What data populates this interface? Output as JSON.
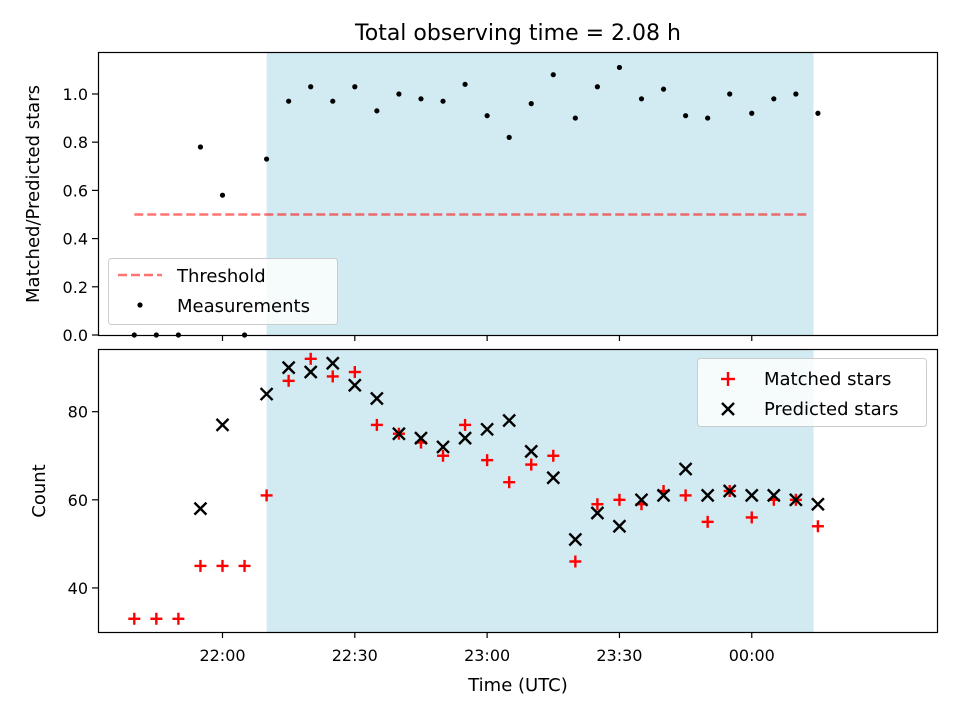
{
  "title": "Total observing time = 2.08 h",
  "colors": {
    "shade": "#add8e6",
    "threshold": "#ff0000",
    "measurement": "#000000",
    "matched": "#ff0000",
    "predicted": "#000000"
  },
  "chart_data": [
    {
      "type": "scatter",
      "ylabel": "Matched/Predicted stars",
      "xlim": [
        "21:32",
        "00:42"
      ],
      "ylim": [
        0,
        1.17
      ],
      "yticks": [
        0.0,
        0.2,
        0.4,
        0.6,
        0.8,
        1.0
      ],
      "ytick_labels": [
        "0.0",
        "0.2",
        "0.4",
        "0.6",
        "0.8",
        "1.0"
      ],
      "shaded_span": [
        "22:10",
        "00:14"
      ],
      "legend": {
        "position": "lower-left",
        "entries": [
          "Threshold",
          "Measurements"
        ]
      },
      "threshold": {
        "name": "Threshold",
        "y": 0.5,
        "x": [
          "21:40",
          "00:13"
        ]
      },
      "series": [
        {
          "name": "Measurements",
          "x": [
            "21:40",
            "21:45",
            "21:50",
            "21:55",
            "22:00",
            "22:05",
            "22:10",
            "22:15",
            "22:20",
            "22:25",
            "22:30",
            "22:35",
            "22:40",
            "22:45",
            "22:50",
            "22:55",
            "23:00",
            "23:05",
            "23:10",
            "23:15",
            "23:20",
            "23:25",
            "23:30",
            "23:35",
            "23:40",
            "23:45",
            "23:50",
            "23:55",
            "00:00",
            "00:05",
            "00:10",
            "00:15"
          ],
          "y": [
            0.0,
            0.0,
            0.0,
            0.78,
            0.58,
            0.0,
            0.73,
            0.97,
            1.03,
            0.97,
            1.03,
            0.93,
            1.0,
            0.98,
            0.97,
            1.04,
            0.91,
            0.82,
            0.96,
            1.08,
            0.9,
            1.03,
            1.11,
            0.98,
            1.02,
            0.91,
            0.9,
            1.0,
            0.92,
            0.98,
            1.0,
            0.92
          ]
        }
      ]
    },
    {
      "type": "scatter",
      "xlabel": "Time (UTC)",
      "ylabel": "Count",
      "xlim": [
        "21:32",
        "00:42"
      ],
      "ylim": [
        30,
        94
      ],
      "xticks": [
        "22:00",
        "22:30",
        "23:00",
        "23:30",
        "00:00"
      ],
      "yticks": [
        40,
        60,
        80
      ],
      "ytick_labels": [
        "40",
        "60",
        "80"
      ],
      "shaded_span": [
        "22:10",
        "00:14"
      ],
      "legend": {
        "position": "upper-right",
        "entries": [
          "Matched stars",
          "Predicted stars"
        ]
      },
      "series": [
        {
          "name": "Matched stars",
          "x": [
            "21:40",
            "21:45",
            "21:50",
            "21:55",
            "22:00",
            "22:05",
            "22:10",
            "22:15",
            "22:20",
            "22:25",
            "22:30",
            "22:35",
            "22:40",
            "22:45",
            "22:50",
            "22:55",
            "23:00",
            "23:05",
            "23:10",
            "23:15",
            "23:20",
            "23:25",
            "23:30",
            "23:35",
            "23:40",
            "23:45",
            "23:50",
            "23:55",
            "00:00",
            "00:05",
            "00:10",
            "00:15"
          ],
          "y": [
            33,
            33,
            33,
            45,
            45,
            45,
            61,
            87,
            92,
            88,
            89,
            77,
            75,
            73,
            70,
            77,
            69,
            64,
            68,
            70,
            46,
            59,
            60,
            59,
            62,
            61,
            55,
            62,
            56,
            60,
            60,
            54
          ]
        },
        {
          "name": "Predicted stars",
          "x": [
            "21:55",
            "22:00",
            "22:10",
            "22:15",
            "22:20",
            "22:25",
            "22:30",
            "22:35",
            "22:40",
            "22:45",
            "22:50",
            "22:55",
            "23:00",
            "23:05",
            "23:10",
            "23:15",
            "23:20",
            "23:25",
            "23:30",
            "23:35",
            "23:40",
            "23:45",
            "23:50",
            "23:55",
            "00:00",
            "00:05",
            "00:10",
            "00:15"
          ],
          "y": [
            58,
            77,
            84,
            90,
            89,
            91,
            86,
            83,
            75,
            74,
            72,
            74,
            76,
            78,
            71,
            65,
            51,
            57,
            54,
            60,
            61,
            67,
            61,
            62,
            61,
            61,
            60,
            59
          ]
        }
      ]
    }
  ]
}
